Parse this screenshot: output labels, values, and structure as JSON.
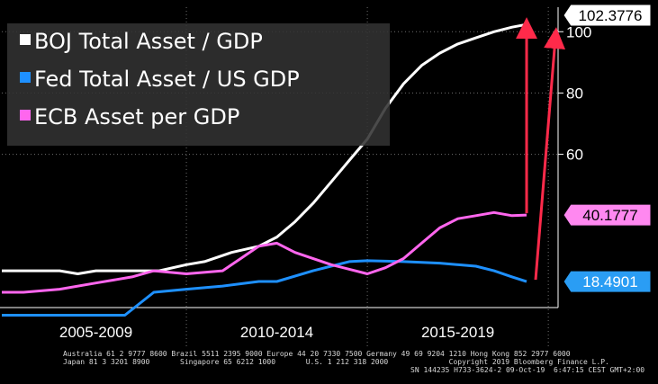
{
  "chart_data": {
    "type": "line",
    "title": "",
    "xlabel": "",
    "ylabel": "",
    "x_range": [
      2004.4,
      2019.77
    ],
    "ylim": [
      10,
      108
    ],
    "y_ticks": [
      60,
      80,
      100
    ],
    "x_period_labels": [
      "2005-2009",
      "2010-2014",
      "2015-2019"
    ],
    "grid": true,
    "legend_position": "top-left",
    "series": [
      {
        "name": "BOJ Total Asset / GDP",
        "color": "#ffffff",
        "last_value_label": "102.3776",
        "x": [
          2004.4,
          2005.0,
          2006.0,
          2006.5,
          2007.0,
          2008.0,
          2008.75,
          2009.5,
          2010.0,
          2010.75,
          2011.5,
          2012.0,
          2012.5,
          2013.0,
          2013.5,
          2014.0,
          2014.5,
          2015.0,
          2015.5,
          2016.0,
          2016.5,
          2017.0,
          2017.5,
          2018.0,
          2018.5,
          2018.9
        ],
        "values": [
          22,
          22,
          22,
          21,
          22,
          22,
          22,
          24,
          25,
          28,
          30,
          33,
          38,
          44,
          51,
          58,
          65,
          75,
          83,
          89,
          93,
          96,
          98,
          100,
          101.5,
          102.38
        ]
      },
      {
        "name": "Fed Total Asset / US GDP",
        "color": "#1e90ff",
        "last_value_label": "18.4901",
        "x": [
          2004.4,
          2005.5,
          2006.5,
          2007.5,
          2007.8,
          2008.6,
          2009.5,
          2010.5,
          2011.5,
          2012.0,
          2013.0,
          2014.0,
          2014.5,
          2015.5,
          2016.5,
          2017.5,
          2018.0,
          2018.5,
          2018.9
        ],
        "values": [
          7.5,
          7.5,
          7.5,
          7.5,
          7.5,
          15,
          16,
          17,
          18.5,
          18.5,
          22,
          25,
          25.3,
          25,
          24.5,
          23.5,
          22,
          20,
          18.49
        ]
      },
      {
        "name": "ECB Asset per GDP",
        "color": "#ff66ee",
        "last_value_label": "40.1777",
        "x": [
          2004.4,
          2005.0,
          2006.0,
          2007.0,
          2008.0,
          2008.6,
          2009.5,
          2010.5,
          2011.0,
          2011.5,
          2012.0,
          2012.5,
          2013.5,
          2014.5,
          2015.0,
          2015.5,
          2016.0,
          2016.5,
          2017.0,
          2017.5,
          2018.0,
          2018.5,
          2018.9
        ],
        "values": [
          15,
          15,
          16,
          18,
          20,
          22,
          21,
          22,
          26,
          30,
          31,
          28,
          24,
          21,
          23,
          26,
          31,
          36,
          39,
          40,
          41,
          40,
          40.18
        ]
      }
    ],
    "annotations": [
      "red-arrow-up-from-boj-last",
      "red-arrow-up-from-fed-last"
    ]
  },
  "footer": {
    "line1": "Australia 61 2 9777 8600 Brazil 5511 2395 9000 Europe 44 20 7330 7500 Germany 49 69 9204 1210 Hong Kong 852 2977 6000",
    "line2": "Japan 81 3 3201 8900       Singapore 65 6212 1000       U.S. 1 212 318 2000              Copyright 2019 Bloomberg Finance L.P.",
    "line3": "SN 144235 H733-3624-2 09-Oct-19  6:47:15 CEST GMT+2:00"
  },
  "colors": {
    "background": "#000000",
    "grid": "#6e6e6e",
    "arrow": "#ff2a4a",
    "legend_box": "#323232"
  }
}
